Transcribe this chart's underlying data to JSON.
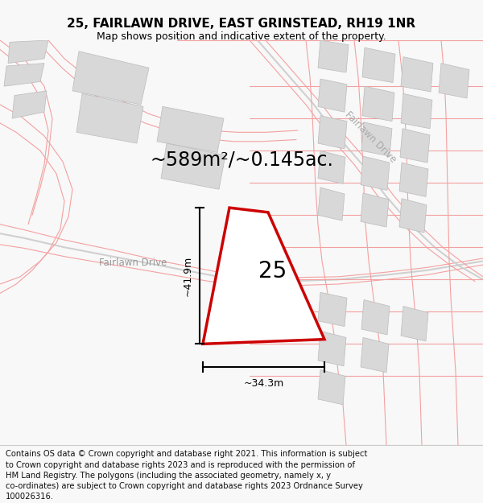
{
  "title": "25, FAIRLAWN DRIVE, EAST GRINSTEAD, RH19 1NR",
  "subtitle": "Map shows position and indicative extent of the property.",
  "area_text": "~589m²/~0.145ac.",
  "label_25": "25",
  "dim_width": "~34.3m",
  "dim_height": "~41.9m",
  "road_label_lower": "Fairlawn Drive",
  "road_label_upper": "Fairlawn Drive",
  "footer": "Contains OS data © Crown copyright and database right 2021. This information is subject to Crown copyright and database rights 2023 and is reproduced with the permission of HM Land Registry. The polygons (including the associated geometry, namely x, y co-ordinates) are subject to Crown copyright and database rights 2023 Ordnance Survey 100026316.",
  "bg_color": "#f8f8f8",
  "map_bg": "#f8f8f8",
  "plot_fill": "#ffffff",
  "plot_edge": "#cc0000",
  "road_pink": "#f4a0a0",
  "road_gray": "#d0d0d0",
  "building_fill": "#d8d8d8",
  "building_edge": "#bbbbbb",
  "title_fontsize": 11,
  "subtitle_fontsize": 9,
  "area_fontsize": 17,
  "label_fontsize": 20,
  "road_label_fontsize": 8.5,
  "footer_fontsize": 7.2
}
